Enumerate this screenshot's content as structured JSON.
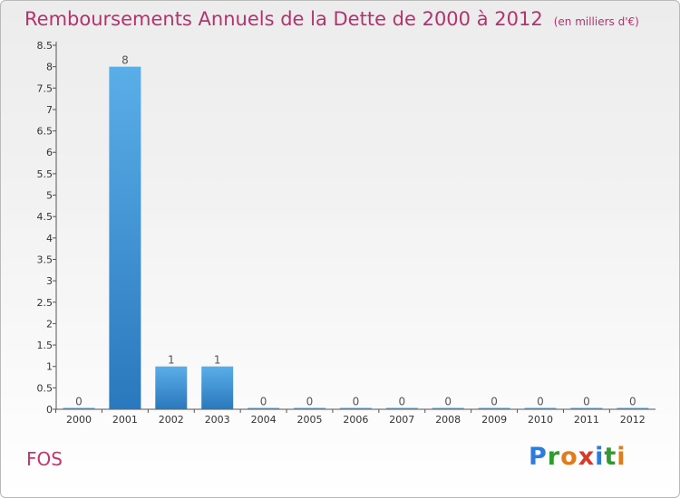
{
  "header": {
    "title": "Remboursements Annuels de la Dette de 2000 à 2012",
    "unit": "(en milliers d'€)"
  },
  "footer": {
    "commune": "FOS",
    "logo": {
      "p": "P",
      "r": "r",
      "o": "o",
      "x": "x",
      "i1": "i",
      "t": "t",
      "i2": "i"
    }
  },
  "colors": {
    "title": "#b3336f",
    "bar_light": "#5aaee8",
    "bar_dark": "#2a78bd"
  },
  "chart_data": {
    "type": "bar",
    "categories": [
      "2000",
      "2001",
      "2002",
      "2003",
      "2004",
      "2005",
      "2006",
      "2007",
      "2008",
      "2009",
      "2010",
      "2011",
      "2012"
    ],
    "values": [
      0,
      8,
      1,
      1,
      0,
      0,
      0,
      0,
      0,
      0,
      0,
      0,
      0
    ],
    "value_labels": [
      "0",
      "8",
      "1",
      "1",
      "0",
      "0",
      "0",
      "0",
      "0",
      "0",
      "0",
      "0",
      "0"
    ],
    "yticks": [
      "0",
      "0.5",
      "1",
      "1.5",
      "2",
      "2.5",
      "3",
      "3.5",
      "4",
      "4.5",
      "5",
      "5.5",
      "6",
      "6.5",
      "7",
      "7.5",
      "8",
      "8.5"
    ],
    "ylim": [
      0,
      8.5
    ],
    "grid": false,
    "legend": "none"
  }
}
